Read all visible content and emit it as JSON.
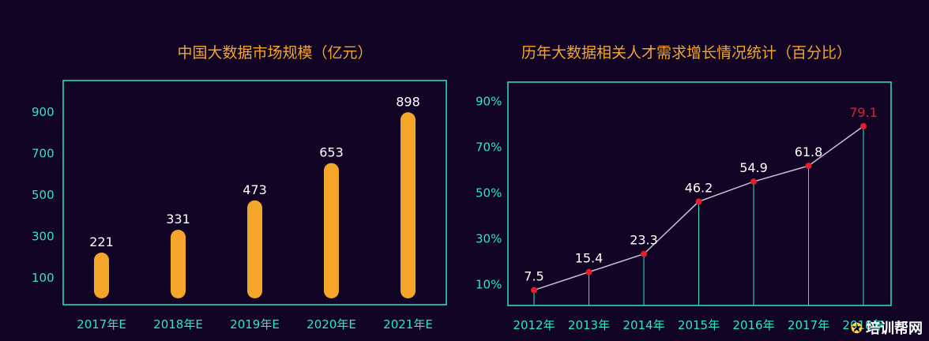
{
  "chart_data": [
    {
      "type": "bar",
      "title": "中国大数据市场规模（亿元）",
      "categories": [
        "2017年E",
        "2018年E",
        "2019年E",
        "2020年E",
        "2021年E"
      ],
      "values": [
        221,
        331,
        473,
        653,
        898
      ],
      "yticks": [
        "100",
        "300",
        "500",
        "700",
        "900"
      ],
      "ylim": [
        0,
        950
      ],
      "bar_color": "#f4a62a",
      "frame_color": "#2ee6c0",
      "grid": false
    },
    {
      "type": "line",
      "title": "历年大数据相关人才需求增长情况统计（百分比）",
      "categories": [
        "2012年",
        "2013年",
        "2014年",
        "2015年",
        "2016年",
        "2017年",
        "2018年"
      ],
      "values": [
        7.5,
        15.4,
        23.3,
        46.2,
        54.9,
        61.8,
        79.1
      ],
      "yticks": [
        "10%",
        "30%",
        "50%",
        "70%",
        "90%"
      ],
      "ylim": [
        0,
        100
      ],
      "line_color": "#c9c0d8",
      "point_color": "#e0202a",
      "highlight_index": 6,
      "frame_color": "#2ee6c0",
      "grid": false
    }
  ],
  "watermark": {
    "icon": "owl-logo-icon",
    "text": "培训帮网"
  }
}
